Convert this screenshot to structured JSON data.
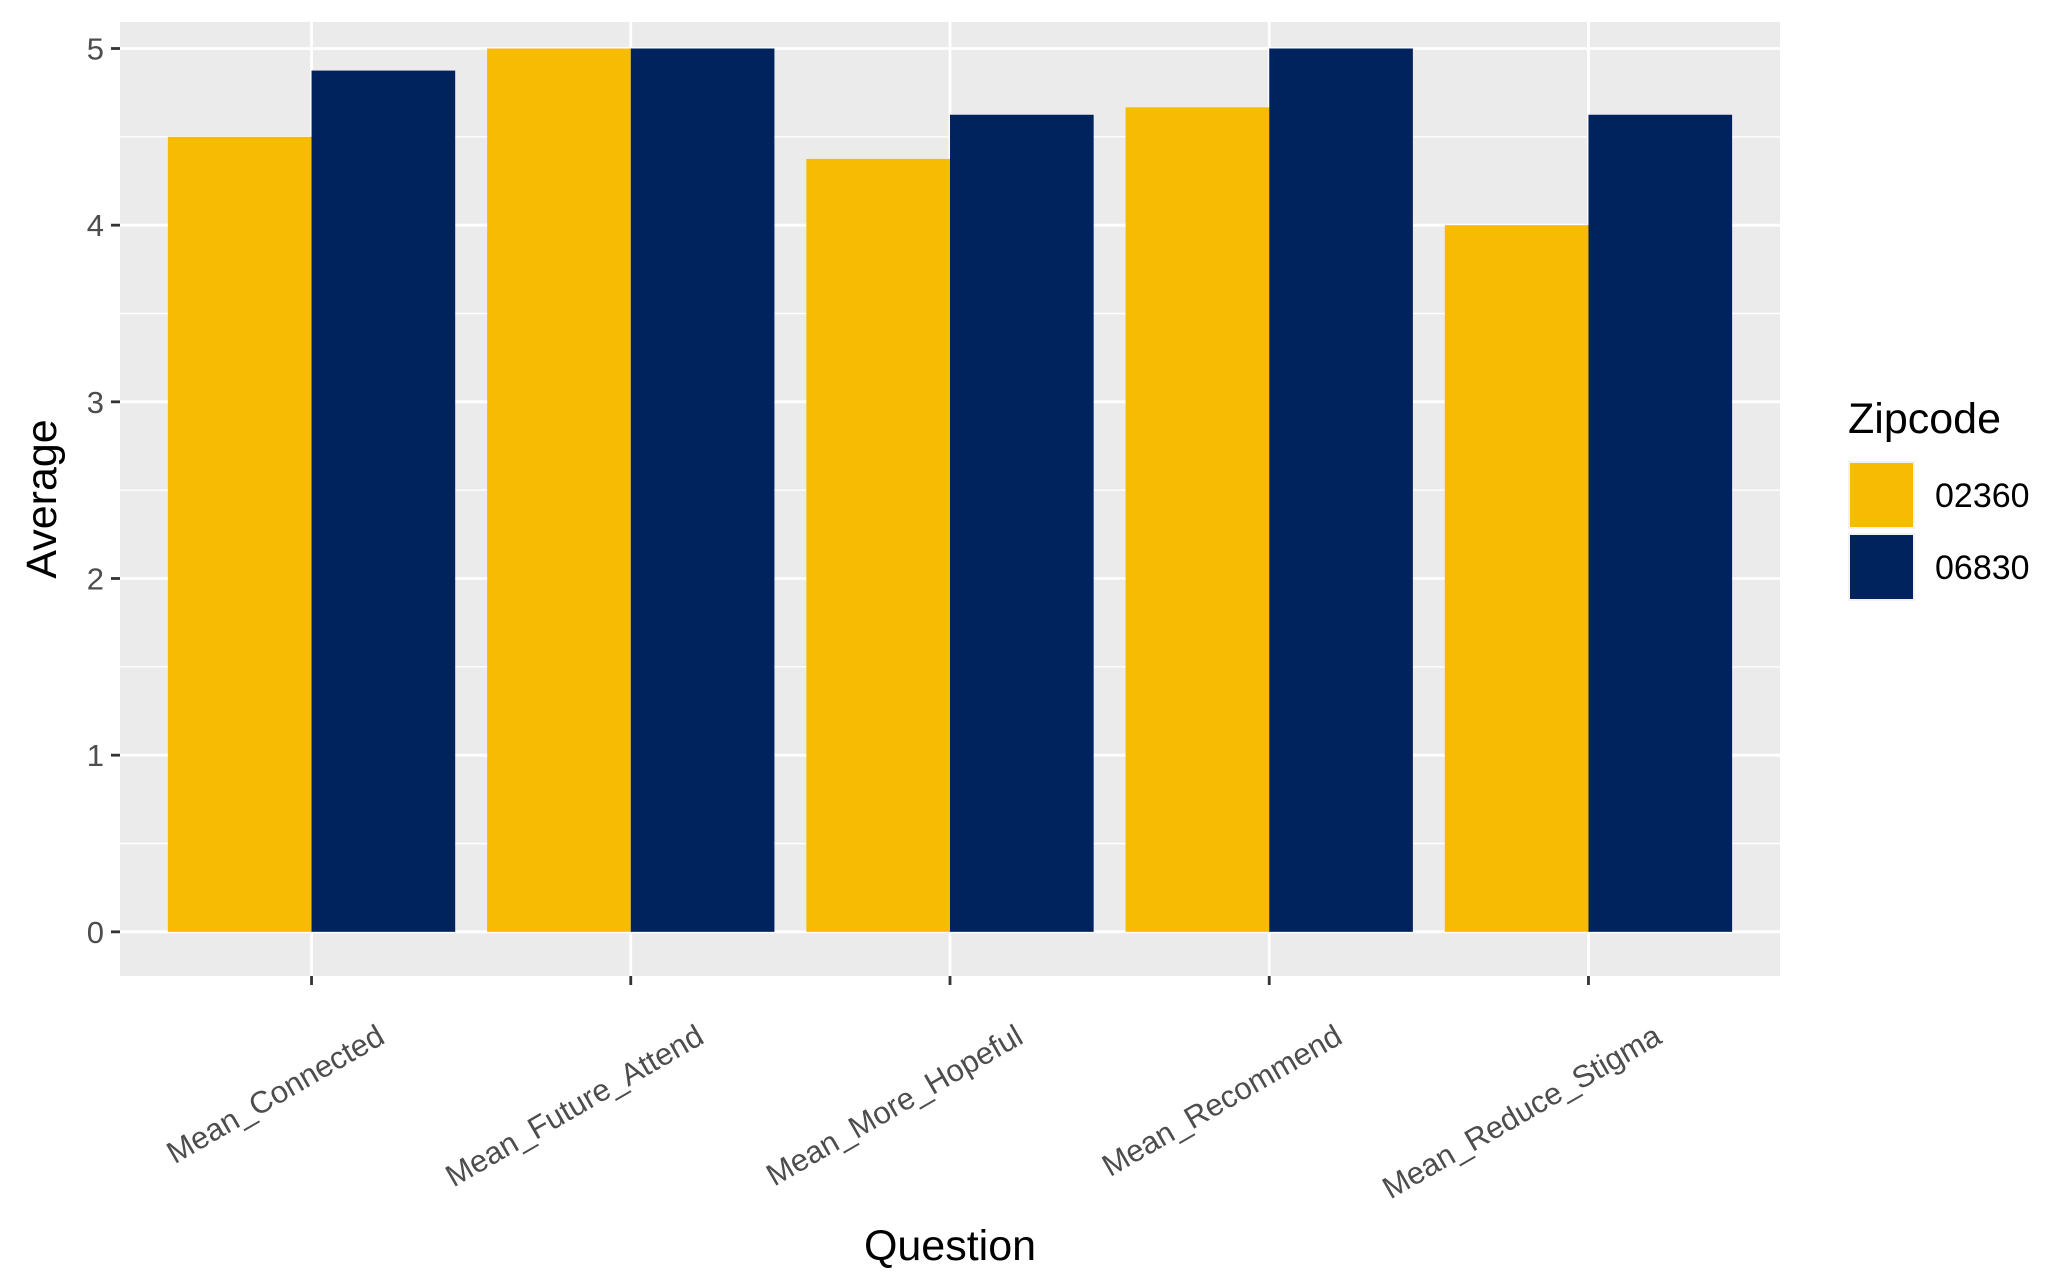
{
  "chart_data": {
    "type": "bar",
    "title": "",
    "xlabel": "Question",
    "ylabel": "Average",
    "ylim": [
      -0.25,
      5.15
    ],
    "yticks": [
      0,
      1,
      2,
      3,
      4,
      5
    ],
    "ytick_labels": [
      "0",
      "1",
      "2",
      "3",
      "4",
      "5"
    ],
    "categories": [
      "Mean_Connected",
      "Mean_Future_Attend",
      "Mean_More_Hopeful",
      "Mean_Recommend",
      "Mean_Reduce_Stigma"
    ],
    "legend": {
      "title": "Zipcode",
      "placement": "right"
    },
    "series": [
      {
        "name": "02360",
        "color": "#F8BB04",
        "values": [
          4.5,
          5.0,
          4.375,
          4.667,
          4.0
        ]
      },
      {
        "name": "06830",
        "color": "#00235E",
        "values": [
          4.875,
          5.0,
          4.625,
          5.0,
          4.625
        ]
      }
    ],
    "grid": true,
    "panel_background": "#EBEBEB",
    "grid_color": "#FFFFFF"
  }
}
